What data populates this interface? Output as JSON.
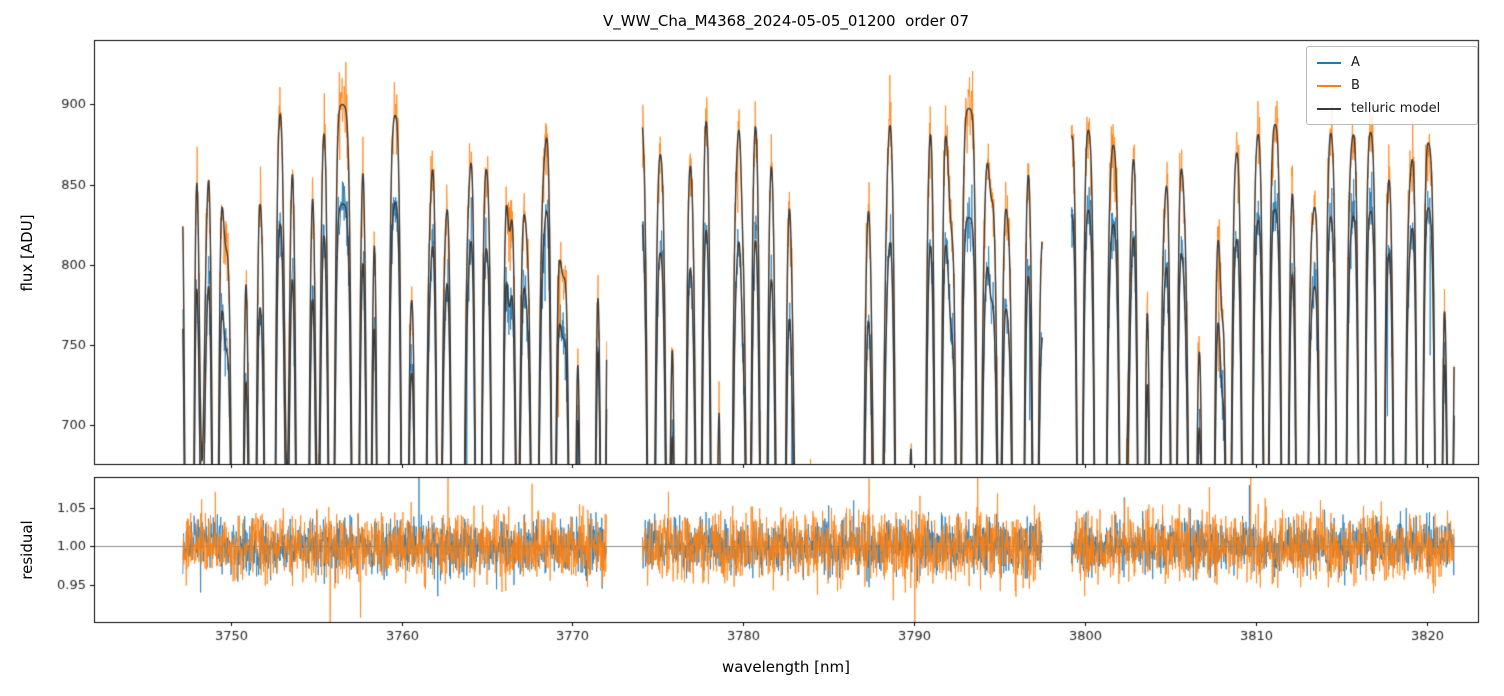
{
  "colors": {
    "figure_background": "#ffffff",
    "axis_color": "#000000",
    "tick_label_color": "#262626",
    "residual_hline_color": "#8a8a8a"
  },
  "chart_data": {
    "type": "line",
    "title": "V_WW_Cha_M4368_2024-05-05_01200  order 07",
    "xlabel": "wavelength [nm]",
    "xlim": [
      3742,
      3823
    ],
    "xticks": [
      3750,
      3760,
      3770,
      3780,
      3790,
      3800,
      3810,
      3820
    ],
    "segments": [
      [
        3747.2,
        3772.0
      ],
      [
        3774.1,
        3797.5
      ],
      [
        3799.2,
        3821.6
      ]
    ],
    "legend": {
      "position": "upper right",
      "entries": [
        {
          "label": "A",
          "color": "#1f77b4"
        },
        {
          "label": "B",
          "color": "#ff7f0e"
        },
        {
          "label": "telluric model",
          "color": "#3a3a3a"
        }
      ]
    },
    "panels": [
      {
        "name": "flux",
        "ylabel": "flux [ADU]",
        "ylim": [
          676,
          940
        ],
        "yticks": [
          700,
          750,
          800,
          850,
          900
        ]
      },
      {
        "name": "residual",
        "ylabel": "residual",
        "ylim": [
          0.902,
          1.09
        ],
        "yticks": [
          0.95,
          1.0,
          1.05
        ],
        "hline": 1.0,
        "series": [
          {
            "name": "A",
            "color": "#1f77b4",
            "sigma": 0.017
          },
          {
            "name": "B",
            "color": "#ff7f0e",
            "sigma": 0.022
          }
        ]
      }
    ],
    "flux_series": {
      "A": {
        "color": "#1f77b4",
        "noise_sigma": 9,
        "continuum": [
          [
            3747,
            833
          ],
          [
            3750,
            836
          ],
          [
            3754,
            834
          ],
          [
            3758,
            840
          ],
          [
            3762,
            842
          ],
          [
            3766,
            844
          ],
          [
            3769,
            848
          ],
          [
            3772,
            852
          ],
          [
            3774,
            837
          ],
          [
            3778,
            833
          ],
          [
            3782,
            829
          ],
          [
            3786,
            833
          ],
          [
            3790,
            831
          ],
          [
            3794,
            829
          ],
          [
            3797.5,
            826
          ],
          [
            3799,
            838
          ],
          [
            3803,
            836
          ],
          [
            3807,
            834
          ],
          [
            3811,
            836
          ],
          [
            3815,
            834
          ],
          [
            3818,
            837
          ],
          [
            3822,
            843
          ]
        ]
      },
      "B": {
        "color": "#ff7f0e",
        "noise_sigma": 11,
        "continuum": [
          [
            3747,
            903
          ],
          [
            3750,
            906
          ],
          [
            3754,
            903
          ],
          [
            3758,
            898
          ],
          [
            3762,
            891
          ],
          [
            3766,
            896
          ],
          [
            3769,
            893
          ],
          [
            3772,
            889
          ],
          [
            3774,
            898
          ],
          [
            3778,
            902
          ],
          [
            3782,
            903
          ],
          [
            3786,
            908
          ],
          [
            3789,
            906
          ],
          [
            3792,
            899
          ],
          [
            3795,
            895
          ],
          [
            3797.5,
            891
          ],
          [
            3799,
            888
          ],
          [
            3803,
            886
          ],
          [
            3807,
            891
          ],
          [
            3811,
            889
          ],
          [
            3815,
            886
          ],
          [
            3818,
            884
          ],
          [
            3822,
            878
          ]
        ]
      },
      "telluric_model": {
        "color": "#3a3a3a"
      }
    },
    "telluric_lines": [
      [
        3747.6,
        0.85,
        0.16
      ],
      [
        3748.3,
        0.22,
        0.14
      ],
      [
        3749.1,
        0.42,
        0.15
      ],
      [
        3750.4,
        1.05,
        0.2
      ],
      [
        3751.3,
        0.5,
        0.15
      ],
      [
        3752.3,
        1.05,
        0.18
      ],
      [
        3753.3,
        0.22,
        0.14
      ],
      [
        3754.2,
        0.95,
        0.22
      ],
      [
        3755.1,
        0.28,
        0.14
      ],
      [
        3755.9,
        0.42,
        0.15
      ],
      [
        3757.3,
        0.5,
        0.18
      ],
      [
        3758.1,
        0.38,
        0.15
      ],
      [
        3758.9,
        1.05,
        0.2
      ],
      [
        3760.2,
        0.58,
        0.16
      ],
      [
        3761.1,
        0.95,
        0.2
      ],
      [
        3762.2,
        0.32,
        0.14
      ],
      [
        3763.3,
        1.05,
        0.22
      ],
      [
        3764.5,
        0.42,
        0.15
      ],
      [
        3765.6,
        1.0,
        0.2
      ],
      [
        3766.8,
        0.28,
        0.14
      ],
      [
        3767.8,
        0.45,
        0.16
      ],
      [
        3768.9,
        0.32,
        0.14
      ],
      [
        3770.0,
        0.5,
        0.16
      ],
      [
        3770.9,
        1.05,
        0.26
      ],
      [
        3771.8,
        0.38,
        0.15
      ],
      [
        3774.6,
        0.5,
        0.16
      ],
      [
        3775.6,
        0.32,
        0.14
      ],
      [
        3776.3,
        1.05,
        0.2
      ],
      [
        3777.4,
        0.42,
        0.15
      ],
      [
        3778.3,
        0.52,
        0.16
      ],
      [
        3779.0,
        1.05,
        0.2
      ],
      [
        3780.3,
        0.38,
        0.15
      ],
      [
        3781.2,
        0.52,
        0.16
      ],
      [
        3782.2,
        0.68,
        0.18
      ],
      [
        3783.4,
        0.5,
        0.3
      ],
      [
        3784.6,
        0.42,
        0.45
      ],
      [
        3785.6,
        0.48,
        0.4
      ],
      [
        3786.6,
        0.8,
        0.3
      ],
      [
        3787.9,
        0.42,
        0.25
      ],
      [
        3789.3,
        1.05,
        0.22
      ],
      [
        3790.3,
        1.05,
        0.22
      ],
      [
        3791.4,
        0.48,
        0.16
      ],
      [
        3792.6,
        0.38,
        0.15
      ],
      [
        3793.8,
        0.32,
        0.14
      ],
      [
        3795.0,
        0.28,
        0.14
      ],
      [
        3796.1,
        1.05,
        0.2
      ],
      [
        3797.1,
        0.42,
        0.15
      ],
      [
        3799.7,
        0.42,
        0.15
      ],
      [
        3800.9,
        1.05,
        0.2
      ],
      [
        3802.2,
        0.38,
        0.15
      ],
      [
        3803.3,
        0.55,
        0.16
      ],
      [
        3804.1,
        0.95,
        0.18
      ],
      [
        3805.2,
        0.42,
        0.15
      ],
      [
        3806.3,
        0.52,
        0.16
      ],
      [
        3807.2,
        1.05,
        0.2
      ],
      [
        3808.4,
        0.42,
        0.15
      ],
      [
        3809.5,
        0.9,
        0.18
      ],
      [
        3810.6,
        0.38,
        0.15
      ],
      [
        3811.7,
        0.52,
        0.16
      ],
      [
        3812.7,
        1.05,
        0.2
      ],
      [
        3813.9,
        0.42,
        0.15
      ],
      [
        3815.0,
        0.85,
        0.18
      ],
      [
        3816.2,
        0.48,
        0.15
      ],
      [
        3817.3,
        0.58,
        0.16
      ],
      [
        3818.4,
        0.95,
        0.2
      ],
      [
        3819.6,
        0.42,
        0.15
      ],
      [
        3820.7,
        0.52,
        0.16
      ],
      [
        3821.4,
        0.32,
        0.14
      ]
    ],
    "micro_lines": {
      "count": 130,
      "depth_max": 0.07,
      "width_max": 0.18
    }
  }
}
